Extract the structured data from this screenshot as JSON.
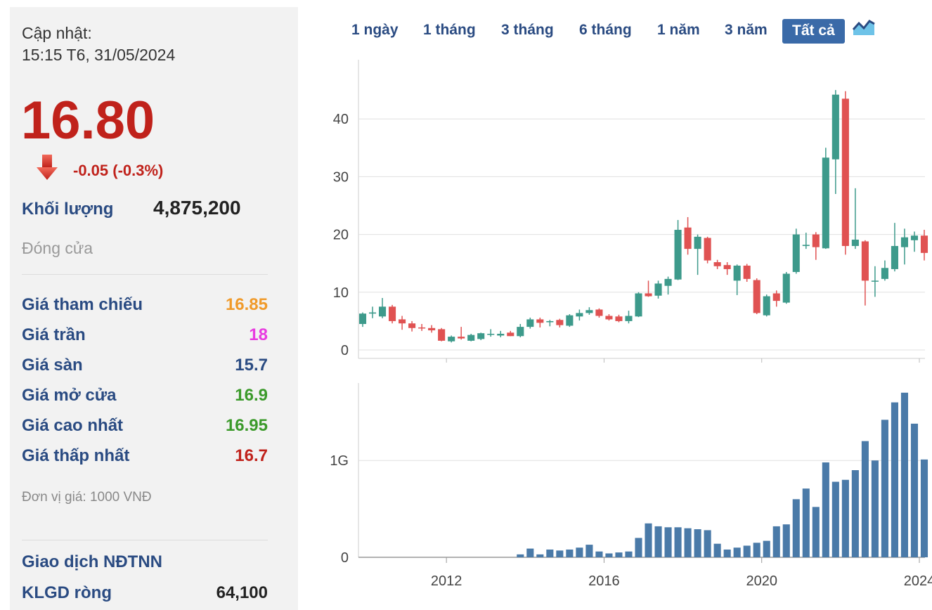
{
  "header": {
    "update_label": "Cập nhật:",
    "update_time": "15:15 T6, 31/05/2024"
  },
  "quote": {
    "price": "16.80",
    "change": "-0.05 (-0.3%)",
    "volume_label": "Khối lượng",
    "volume_value": "4,875,200",
    "status": "Đóng cửa"
  },
  "stats": [
    {
      "label": "Giá tham chiếu",
      "value": "16.85",
      "color": "#f09a2a"
    },
    {
      "label": "Giá trần",
      "value": "18",
      "color": "#e83be0"
    },
    {
      "label": "Giá sàn",
      "value": "15.7",
      "color": "#2a4b82"
    },
    {
      "label": "Giá mở cửa",
      "value": "16.9",
      "color": "#3b9a2a"
    },
    {
      "label": "Giá cao nhất",
      "value": "16.95",
      "color": "#3b9a2a"
    },
    {
      "label": "Giá thấp nhất",
      "value": "16.7",
      "color": "#c0221b"
    }
  ],
  "unit_note": "Đơn vị giá: 1000 VNĐ",
  "foreign": {
    "title": "Giao dịch NĐTNN",
    "net_label": "KLGD ròng",
    "net_value": "64,100"
  },
  "tabs": [
    {
      "label": "1 ngày",
      "active": false
    },
    {
      "label": "1 tháng",
      "active": false
    },
    {
      "label": "3 tháng",
      "active": false
    },
    {
      "label": "6 tháng",
      "active": false
    },
    {
      "label": "1 năm",
      "active": false
    },
    {
      "label": "3 năm",
      "active": false
    },
    {
      "label": "Tất cả",
      "active": true
    }
  ],
  "icons": {
    "change_arrow": "down-arrow-icon",
    "chart_mode": "area-chart-icon"
  },
  "colors": {
    "up": "#3d9a8b",
    "down": "#e05252",
    "accent": "#3a6aa8",
    "volume": "#4a7aa8"
  },
  "chart_data": [
    {
      "type": "candlestick",
      "title": "",
      "ylim": [
        0,
        50
      ],
      "yticks": [
        0,
        10,
        20,
        30,
        40
      ],
      "xticks": [
        "2012",
        "2016",
        "2020",
        "2024"
      ],
      "period": "quarterly",
      "start": "2009-Q4",
      "candles": [
        {
          "o": 4.5,
          "h": 6.5,
          "l": 4.0,
          "c": 6.3
        },
        {
          "o": 6.3,
          "h": 7.5,
          "l": 5.5,
          "c": 6.5
        },
        {
          "o": 5.8,
          "h": 9.0,
          "l": 5.5,
          "c": 7.5
        },
        {
          "o": 7.5,
          "h": 7.8,
          "l": 4.6,
          "c": 5.0
        },
        {
          "o": 5.3,
          "h": 5.9,
          "l": 3.5,
          "c": 4.6
        },
        {
          "o": 4.6,
          "h": 5.0,
          "l": 3.2,
          "c": 3.8
        },
        {
          "o": 3.9,
          "h": 4.5,
          "l": 3.3,
          "c": 3.8
        },
        {
          "o": 3.8,
          "h": 4.3,
          "l": 3.0,
          "c": 3.4
        },
        {
          "o": 3.6,
          "h": 3.8,
          "l": 1.5,
          "c": 1.6
        },
        {
          "o": 1.5,
          "h": 2.5,
          "l": 1.3,
          "c": 2.3
        },
        {
          "o": 2.3,
          "h": 4.0,
          "l": 1.8,
          "c": 2.0
        },
        {
          "o": 1.6,
          "h": 2.8,
          "l": 1.5,
          "c": 2.6
        },
        {
          "o": 1.9,
          "h": 3.0,
          "l": 1.7,
          "c": 2.9
        },
        {
          "o": 2.7,
          "h": 3.6,
          "l": 2.3,
          "c": 2.8
        },
        {
          "o": 2.5,
          "h": 3.3,
          "l": 2.2,
          "c": 2.8
        },
        {
          "o": 3.0,
          "h": 3.3,
          "l": 2.4,
          "c": 2.4
        },
        {
          "o": 2.4,
          "h": 4.5,
          "l": 2.2,
          "c": 4.0
        },
        {
          "o": 4.0,
          "h": 5.6,
          "l": 3.7,
          "c": 5.3
        },
        {
          "o": 5.3,
          "h": 5.6,
          "l": 3.9,
          "c": 4.7
        },
        {
          "o": 4.8,
          "h": 5.2,
          "l": 4.1,
          "c": 5.0
        },
        {
          "o": 5.2,
          "h": 5.4,
          "l": 3.9,
          "c": 4.3
        },
        {
          "o": 4.2,
          "h": 6.2,
          "l": 4.0,
          "c": 6.0
        },
        {
          "o": 5.8,
          "h": 7.0,
          "l": 5.1,
          "c": 6.4
        },
        {
          "o": 6.4,
          "h": 7.4,
          "l": 6.1,
          "c": 6.9
        },
        {
          "o": 7.0,
          "h": 7.2,
          "l": 5.6,
          "c": 5.9
        },
        {
          "o": 5.9,
          "h": 6.2,
          "l": 5.1,
          "c": 5.3
        },
        {
          "o": 5.8,
          "h": 6.1,
          "l": 4.8,
          "c": 5.0
        },
        {
          "o": 5.0,
          "h": 6.8,
          "l": 4.6,
          "c": 5.9
        },
        {
          "o": 5.8,
          "h": 10.0,
          "l": 5.7,
          "c": 9.8
        },
        {
          "o": 9.8,
          "h": 12.0,
          "l": 9.2,
          "c": 9.3
        },
        {
          "o": 9.4,
          "h": 12.0,
          "l": 8.9,
          "c": 11.5
        },
        {
          "o": 11.1,
          "h": 12.7,
          "l": 9.6,
          "c": 12.3
        },
        {
          "o": 12.2,
          "h": 22.5,
          "l": 12.1,
          "c": 20.8
        },
        {
          "o": 21.2,
          "h": 23.0,
          "l": 16.5,
          "c": 17.5
        },
        {
          "o": 17.5,
          "h": 20.0,
          "l": 13.0,
          "c": 19.6
        },
        {
          "o": 19.4,
          "h": 19.6,
          "l": 15.0,
          "c": 15.5
        },
        {
          "o": 15.2,
          "h": 15.6,
          "l": 14.0,
          "c": 14.5
        },
        {
          "o": 14.7,
          "h": 15.2,
          "l": 13.0,
          "c": 14.0
        },
        {
          "o": 12.0,
          "h": 14.8,
          "l": 9.5,
          "c": 14.6
        },
        {
          "o": 14.6,
          "h": 14.9,
          "l": 11.8,
          "c": 12.3
        },
        {
          "o": 12.1,
          "h": 12.4,
          "l": 6.2,
          "c": 6.4
        },
        {
          "o": 6.0,
          "h": 9.6,
          "l": 5.8,
          "c": 9.3
        },
        {
          "o": 9.8,
          "h": 10.3,
          "l": 7.5,
          "c": 8.5
        },
        {
          "o": 8.2,
          "h": 13.5,
          "l": 8.0,
          "c": 13.2
        },
        {
          "o": 13.5,
          "h": 21.0,
          "l": 13.2,
          "c": 20.0
        },
        {
          "o": 18.0,
          "h": 20.3,
          "l": 17.5,
          "c": 18.2
        },
        {
          "o": 20.0,
          "h": 20.4,
          "l": 15.6,
          "c": 17.8
        },
        {
          "o": 17.6,
          "h": 35.0,
          "l": 17.5,
          "c": 33.3
        },
        {
          "o": 33.0,
          "h": 45.0,
          "l": 27.0,
          "c": 44.2
        },
        {
          "o": 43.5,
          "h": 44.8,
          "l": 16.5,
          "c": 18.0
        },
        {
          "o": 18.0,
          "h": 28.0,
          "l": 17.5,
          "c": 19.1
        },
        {
          "o": 18.8,
          "h": 19.0,
          "l": 7.7,
          "c": 12.0
        },
        {
          "o": 12.0,
          "h": 14.5,
          "l": 9.2,
          "c": 12.0
        },
        {
          "o": 12.3,
          "h": 15.5,
          "l": 12.0,
          "c": 14.2
        },
        {
          "o": 14.0,
          "h": 22.0,
          "l": 13.6,
          "c": 18.0
        },
        {
          "o": 17.8,
          "h": 21.0,
          "l": 14.8,
          "c": 19.5
        },
        {
          "o": 19.0,
          "h": 20.5,
          "l": 17.0,
          "c": 19.8
        },
        {
          "o": 19.8,
          "h": 20.8,
          "l": 15.5,
          "c": 16.8
        }
      ]
    },
    {
      "type": "bar",
      "title": "volume",
      "ylim": [
        0,
        1800000000
      ],
      "yticks": [
        {
          "value": 0,
          "label": "0"
        },
        {
          "value": 1000000000,
          "label": "1G"
        }
      ],
      "values": [
        0,
        0,
        0,
        0,
        0,
        0,
        0,
        0,
        0,
        0,
        0,
        0,
        0,
        0,
        0,
        0,
        30000000,
        90000000,
        30000000,
        80000000,
        70000000,
        80000000,
        100000000,
        130000000,
        60000000,
        40000000,
        50000000,
        60000000,
        200000000,
        350000000,
        320000000,
        310000000,
        310000000,
        300000000,
        290000000,
        280000000,
        140000000,
        80000000,
        100000000,
        120000000,
        150000000,
        170000000,
        320000000,
        340000000,
        600000000,
        710000000,
        520000000,
        980000000,
        780000000,
        800000000,
        900000000,
        1200000000,
        1000000000,
        1420000000,
        1600000000,
        1700000000,
        1380000000,
        1010000000
      ]
    }
  ]
}
